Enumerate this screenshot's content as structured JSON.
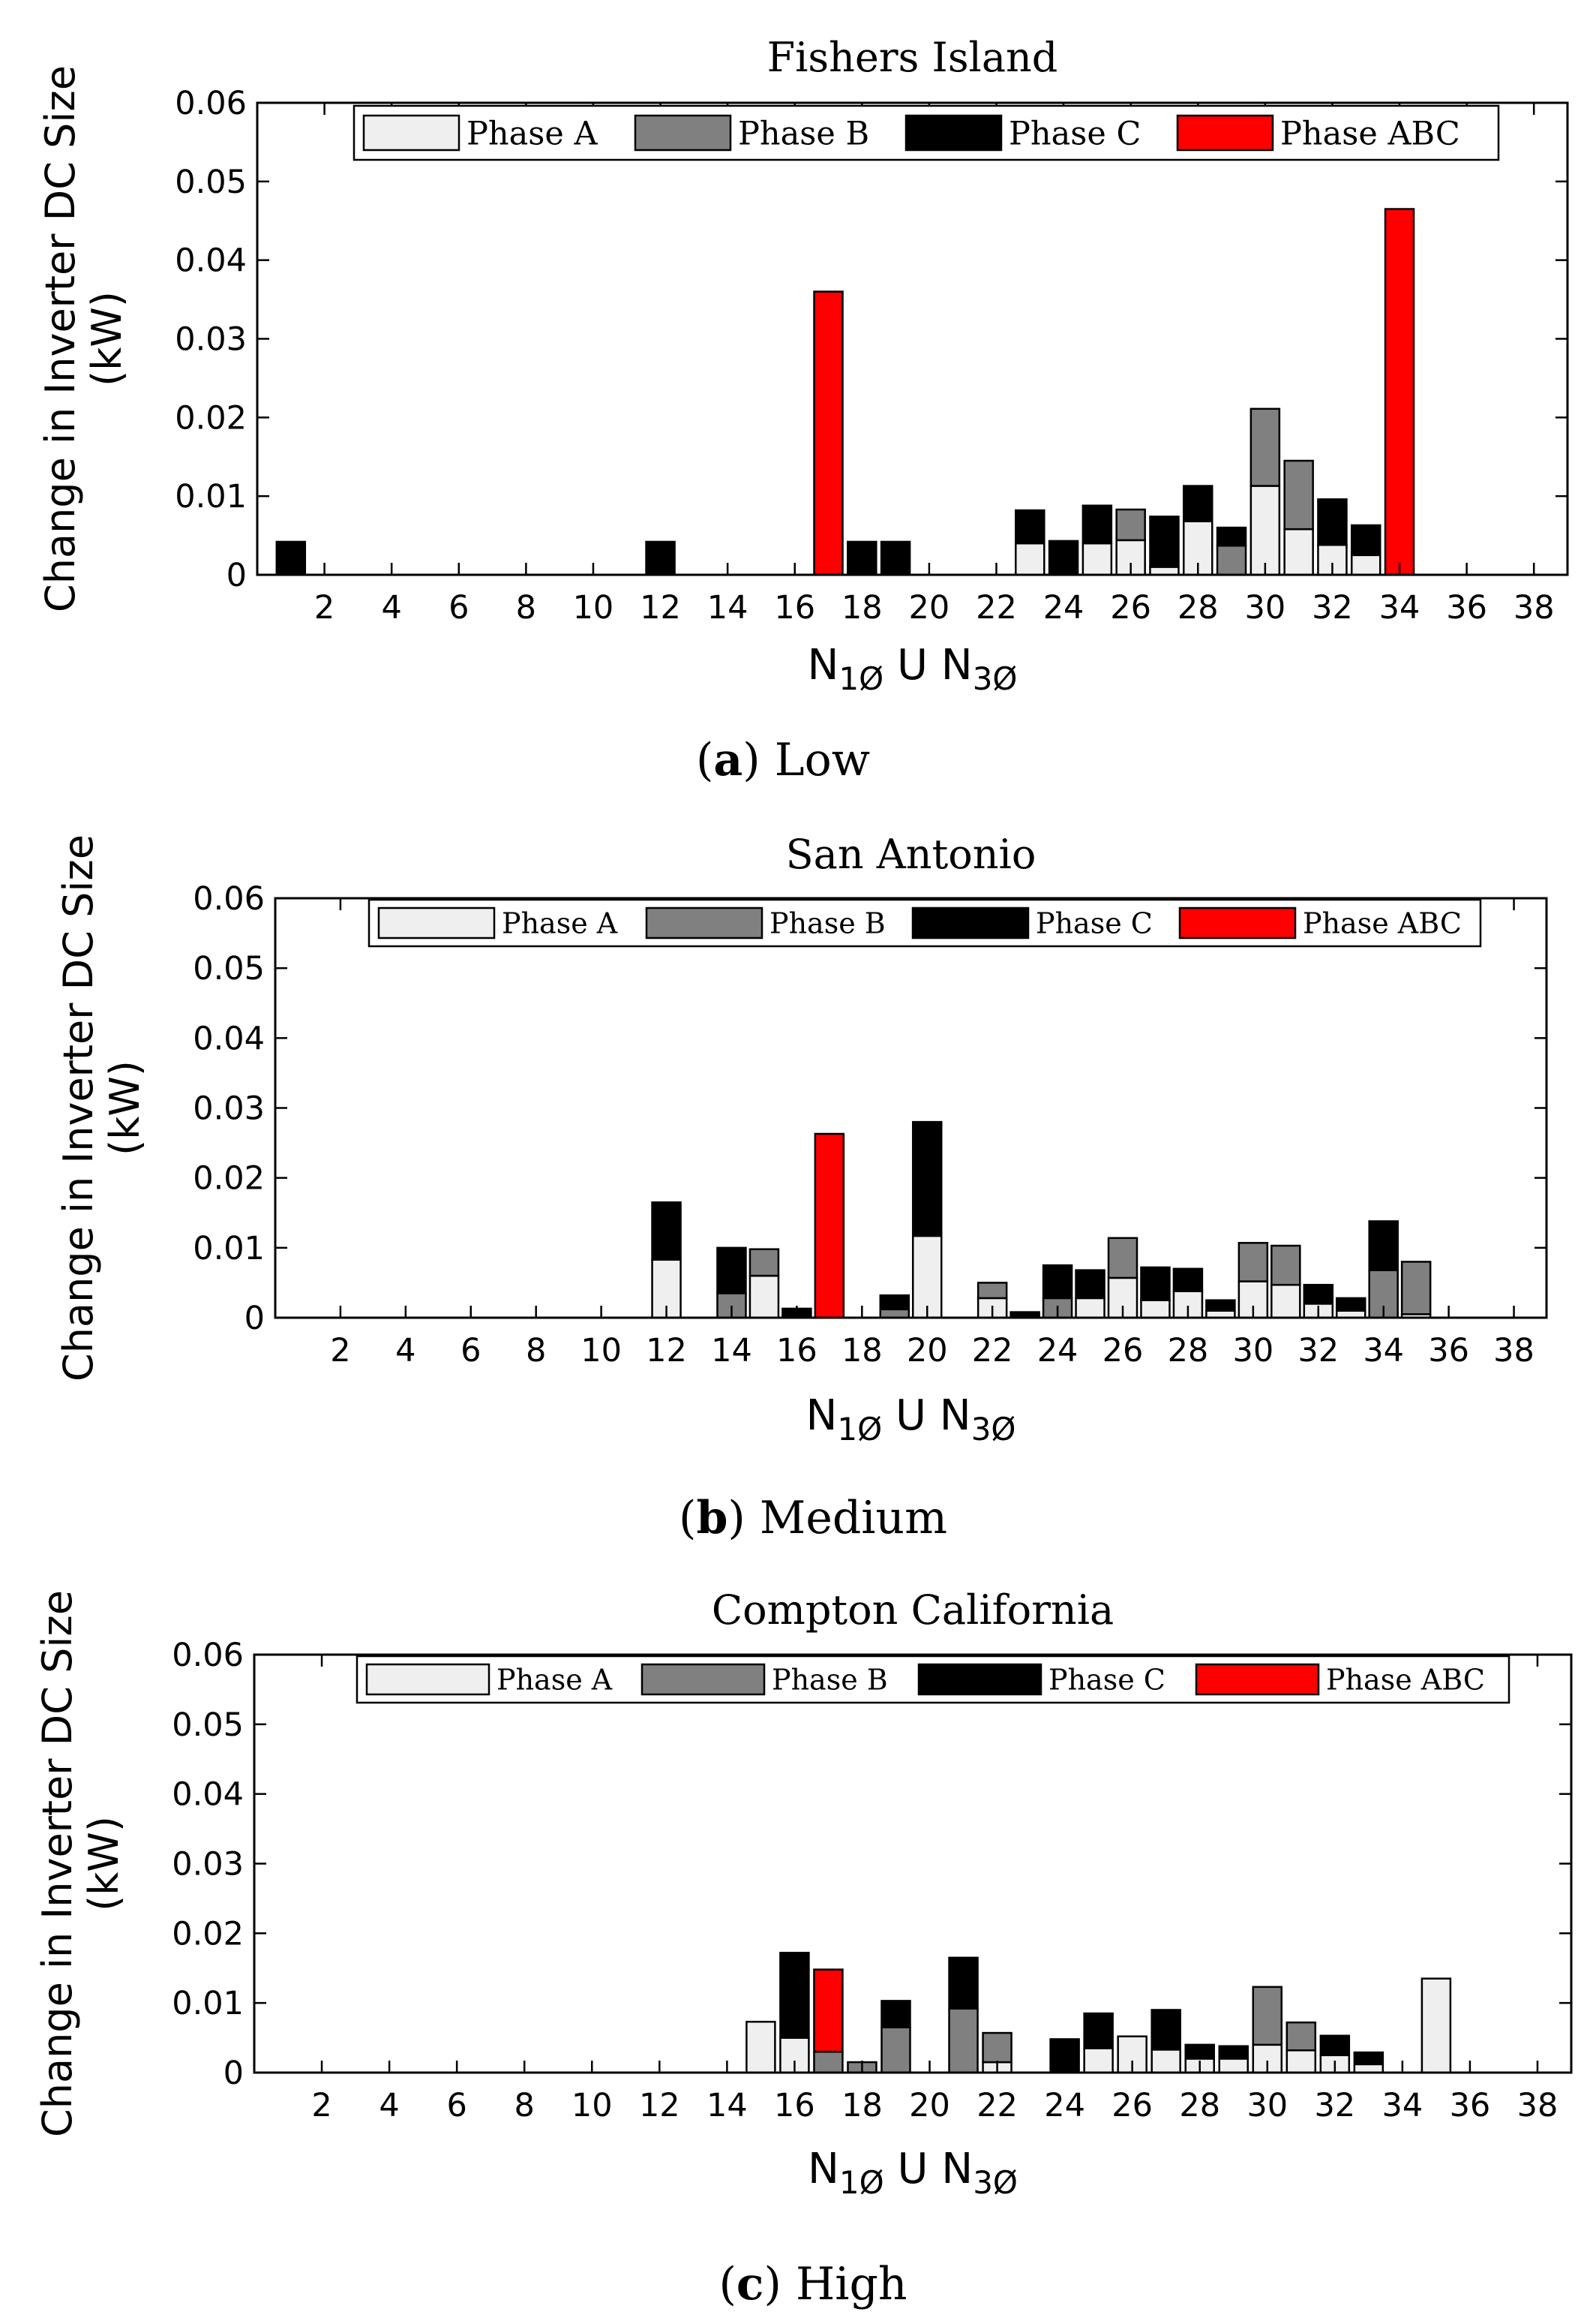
{
  "colors": {
    "phase_a": "#efefef",
    "phase_b": "#808080",
    "phase_c": "#000000",
    "phase_abc": "#ff0000",
    "axis": "#000000",
    "background": "#ffffff"
  },
  "legend_labels": [
    "Phase A",
    "Phase B",
    "Phase C",
    "Phase ABC"
  ],
  "xlabel": {
    "n1": "N",
    "sub1": "1Ø",
    "union": " U ",
    "n3": "N",
    "sub3": "3Ø"
  },
  "ylabel_lines": [
    "Change in Inverter DC Size",
    "(kW)"
  ],
  "captions": [
    {
      "letter": "a",
      "text": "Low"
    },
    {
      "letter": "b",
      "text": "Medium"
    },
    {
      "letter": "c",
      "text": "High"
    }
  ],
  "chart_data": [
    {
      "type": "bar",
      "stacked": true,
      "title": "Fishers Island",
      "xlabel": "N1Ø U N3Ø",
      "ylabel": "Change in Inverter DC Size (kW)",
      "xlim": [
        0,
        39
      ],
      "ylim": [
        0,
        0.06
      ],
      "xticks": [
        2,
        4,
        6,
        8,
        10,
        12,
        14,
        16,
        18,
        20,
        22,
        24,
        26,
        28,
        30,
        32,
        34,
        36,
        38
      ],
      "yticks": [
        0,
        0.01,
        0.02,
        0.03,
        0.04,
        0.05,
        0.06
      ],
      "ytick_labels": [
        "0",
        "0.01",
        "0.02",
        "0.03",
        "0.04",
        "0.05",
        "0.06"
      ],
      "legend_location": "top",
      "bars": [
        {
          "x": 1,
          "c": 0.0042
        },
        {
          "x": 12,
          "c": 0.0042
        },
        {
          "x": 17,
          "abc": 0.036
        },
        {
          "x": 18,
          "c": 0.0042
        },
        {
          "x": 19,
          "c": 0.0042
        },
        {
          "x": 23,
          "a": 0.004,
          "c": 0.0042
        },
        {
          "x": 24,
          "c": 0.0043
        },
        {
          "x": 25,
          "a": 0.004,
          "c": 0.0048
        },
        {
          "x": 26,
          "a": 0.0044,
          "b": 0.0039
        },
        {
          "x": 27,
          "a": 0.001,
          "c": 0.0064
        },
        {
          "x": 28,
          "a": 0.0068,
          "c": 0.0045
        },
        {
          "x": 29,
          "b": 0.0037,
          "c": 0.0023
        },
        {
          "x": 30,
          "a": 0.0113,
          "b": 0.0098
        },
        {
          "x": 31,
          "a": 0.0058,
          "b": 0.0087
        },
        {
          "x": 32,
          "a": 0.0038,
          "c": 0.0058
        },
        {
          "x": 33,
          "a": 0.0025,
          "c": 0.0038
        },
        {
          "x": 34,
          "abc": 0.0465
        }
      ]
    },
    {
      "type": "bar",
      "stacked": true,
      "title": "San Antonio",
      "xlabel": "N1Ø U N3Ø",
      "ylabel": "Change in Inverter DC Size (kW)",
      "xlim": [
        0,
        39
      ],
      "ylim": [
        0,
        0.06
      ],
      "xticks": [
        2,
        4,
        6,
        8,
        10,
        12,
        14,
        16,
        18,
        20,
        22,
        24,
        26,
        28,
        30,
        32,
        34,
        36,
        38
      ],
      "yticks": [
        0,
        0.01,
        0.02,
        0.03,
        0.04,
        0.05,
        0.06
      ],
      "ytick_labels": [
        "0",
        "0.01",
        "0.02",
        "0.03",
        "0.04",
        "0.05",
        "0.06"
      ],
      "legend_location": "top",
      "bars": [
        {
          "x": 12,
          "a": 0.0083,
          "c": 0.0082
        },
        {
          "x": 14,
          "b": 0.0035,
          "c": 0.0065
        },
        {
          "x": 15,
          "a": 0.006,
          "b": 0.0038
        },
        {
          "x": 16,
          "c": 0.0013
        },
        {
          "x": 17,
          "abc": 0.0263
        },
        {
          "x": 19,
          "b": 0.0012,
          "c": 0.002
        },
        {
          "x": 20,
          "a": 0.0117,
          "c": 0.0163
        },
        {
          "x": 22,
          "a": 0.0028,
          "b": 0.0022
        },
        {
          "x": 23,
          "c": 0.0008
        },
        {
          "x": 24,
          "b": 0.0028,
          "c": 0.0047
        },
        {
          "x": 25,
          "a": 0.0028,
          "c": 0.004
        },
        {
          "x": 26,
          "a": 0.0057,
          "b": 0.0057
        },
        {
          "x": 27,
          "a": 0.0025,
          "c": 0.0047
        },
        {
          "x": 28,
          "a": 0.0038,
          "c": 0.0032
        },
        {
          "x": 29,
          "a": 0.001,
          "c": 0.0015
        },
        {
          "x": 30,
          "a": 0.0052,
          "b": 0.0055
        },
        {
          "x": 31,
          "a": 0.0047,
          "b": 0.0056
        },
        {
          "x": 32,
          "a": 0.002,
          "c": 0.0027
        },
        {
          "x": 33,
          "a": 0.001,
          "c": 0.0018
        },
        {
          "x": 34,
          "b": 0.0068,
          "c": 0.007
        },
        {
          "x": 35,
          "a": 0.0005,
          "b": 0.0075
        }
      ]
    },
    {
      "type": "bar",
      "stacked": true,
      "title": "Compton California",
      "xlabel": "N1Ø U N3Ø",
      "ylabel": "Change in Inverter DC Size (kW)",
      "xlim": [
        0,
        39
      ],
      "ylim": [
        0,
        0.06
      ],
      "xticks": [
        2,
        4,
        6,
        8,
        10,
        12,
        14,
        16,
        18,
        20,
        22,
        24,
        26,
        28,
        30,
        32,
        34,
        36,
        38
      ],
      "yticks": [
        0,
        0.01,
        0.02,
        0.03,
        0.04,
        0.05,
        0.06
      ],
      "ytick_labels": [
        "0",
        "0.01",
        "0.02",
        "0.03",
        "0.04",
        "0.05",
        "0.06"
      ],
      "legend_location": "top",
      "bars": [
        {
          "x": 15,
          "a": 0.0073
        },
        {
          "x": 16,
          "a": 0.005,
          "c": 0.0122
        },
        {
          "x": 17,
          "b": 0.003,
          "abc": 0.0118
        },
        {
          "x": 18,
          "b": 0.0015
        },
        {
          "x": 19,
          "b": 0.0065,
          "c": 0.0038
        },
        {
          "x": 21,
          "b": 0.0092,
          "c": 0.0073
        },
        {
          "x": 22,
          "a": 0.0015,
          "b": 0.0042
        },
        {
          "x": 24,
          "c": 0.0048
        },
        {
          "x": 25,
          "a": 0.0035,
          "c": 0.005
        },
        {
          "x": 26,
          "a": 0.0052
        },
        {
          "x": 27,
          "a": 0.0033,
          "c": 0.0057
        },
        {
          "x": 28,
          "a": 0.002,
          "c": 0.002
        },
        {
          "x": 29,
          "a": 0.002,
          "c": 0.0018
        },
        {
          "x": 30,
          "a": 0.004,
          "b": 0.0083
        },
        {
          "x": 31,
          "a": 0.0032,
          "b": 0.004
        },
        {
          "x": 32,
          "a": 0.0025,
          "c": 0.0028
        },
        {
          "x": 33,
          "a": 0.0012,
          "c": 0.0017
        },
        {
          "x": 35,
          "a": 0.0135
        }
      ]
    }
  ]
}
